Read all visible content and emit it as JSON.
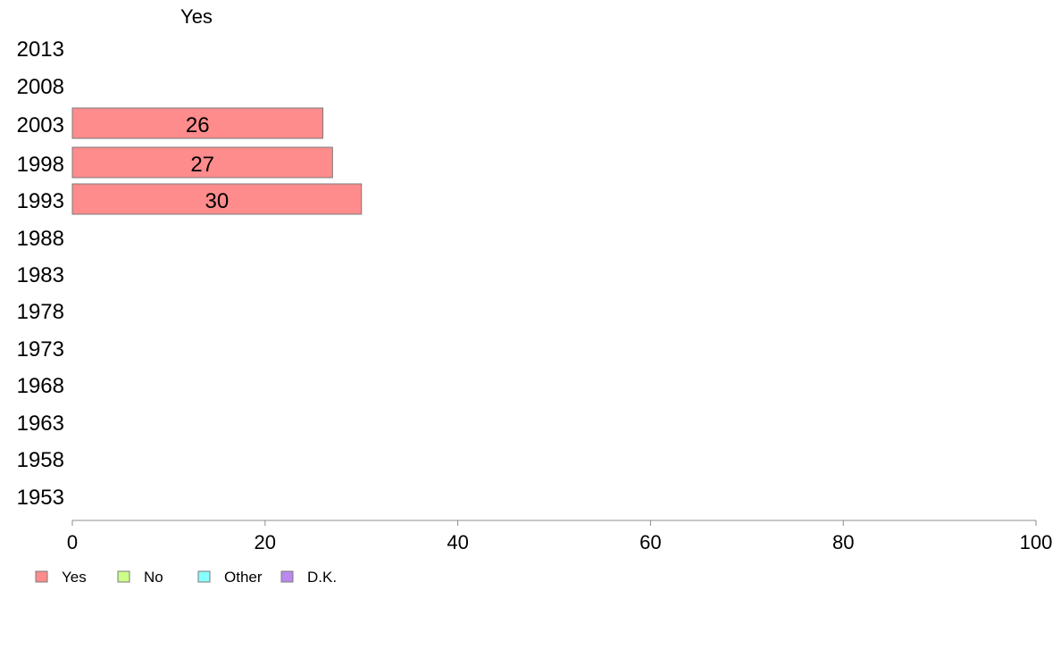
{
  "chart_data": {
    "type": "bar",
    "orientation": "horizontal",
    "header_label": "Yes",
    "categories": [
      "2013",
      "2008",
      "2003",
      "1998",
      "1993",
      "1988",
      "1983",
      "1978",
      "1973",
      "1968",
      "1963",
      "1958",
      "1953"
    ],
    "series": [
      {
        "name": "Yes",
        "values": [
          null,
          null,
          26,
          27,
          30,
          null,
          null,
          null,
          null,
          null,
          null,
          null,
          null
        ]
      }
    ],
    "data_labels": [
      "",
      "",
      "26",
      "27",
      "30",
      "",
      "",
      "",
      "",
      "",
      "",
      "",
      ""
    ],
    "xlim": [
      0,
      100
    ],
    "xticks": [
      "0",
      "20",
      "40",
      "60",
      "80",
      "100"
    ],
    "grid": false,
    "legend": {
      "position": "bottom-left",
      "entries": [
        {
          "label": "Yes",
          "color": "#ff8c8c"
        },
        {
          "label": "No",
          "color": "#ccff88"
        },
        {
          "label": "Other",
          "color": "#88ffff"
        },
        {
          "label": "D.K.",
          "color": "#bb88ee"
        }
      ]
    },
    "colors": {
      "bar_fill": "#ff8c8c",
      "bar_stroke": "#7a7a7a",
      "axis": "#8c8c8c"
    }
  }
}
